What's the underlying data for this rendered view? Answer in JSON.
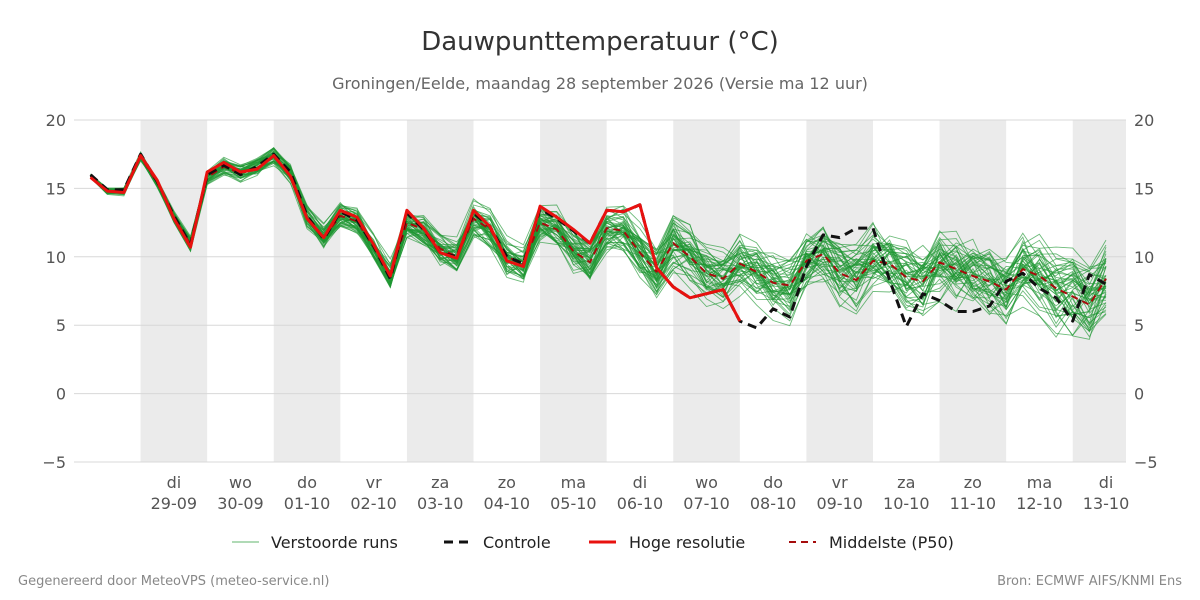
{
  "chart_data": {
    "type": "line",
    "title": "Dauwpunttemperatuur (°C)",
    "subtitle": "Groningen/Eelde, maandag 28 september 2026 (Versie ma 12 uur)",
    "ylim": [
      -5,
      20
    ],
    "yticks": [
      20,
      15,
      10,
      5,
      0,
      -5
    ],
    "ytick_labels": [
      "20",
      "15",
      "10",
      "5",
      "0",
      "−5"
    ],
    "x_range_days": [
      0,
      15.8
    ],
    "grid": true,
    "day_labels": [
      {
        "day": "di",
        "date": "29-09"
      },
      {
        "day": "wo",
        "date": "30-09"
      },
      {
        "day": "do",
        "date": "01-10"
      },
      {
        "day": "vr",
        "date": "02-10"
      },
      {
        "day": "za",
        "date": "03-10"
      },
      {
        "day": "zo",
        "date": "04-10"
      },
      {
        "day": "ma",
        "date": "05-10"
      },
      {
        "day": "di",
        "date": "06-10"
      },
      {
        "day": "wo",
        "date": "07-10"
      },
      {
        "day": "do",
        "date": "08-10"
      },
      {
        "day": "vr",
        "date": "09-10"
      },
      {
        "day": "za",
        "date": "10-10"
      },
      {
        "day": "zo",
        "date": "11-10"
      },
      {
        "day": "ma",
        "date": "12-10"
      },
      {
        "day": "di",
        "date": "13-10"
      }
    ],
    "series": [
      {
        "name": "Hoge resolutie",
        "color": "#e8110f",
        "style": "solid",
        "x": [
          0.25,
          0.5,
          0.75,
          1.0,
          1.25,
          1.5,
          1.75,
          2.0,
          2.25,
          2.5,
          2.75,
          3.0,
          3.25,
          3.5,
          3.75,
          4.0,
          4.25,
          4.5,
          4.75,
          5.0,
          5.25,
          5.5,
          5.75,
          6.0,
          6.25,
          6.5,
          6.75,
          7.0,
          7.25,
          7.5,
          7.75,
          8.0,
          8.25,
          8.5,
          8.75,
          9.0,
          9.25,
          9.5,
          9.75,
          10.0
        ],
        "values": [
          15.8,
          14.8,
          14.7,
          17.4,
          15.6,
          12.8,
          10.7,
          16.2,
          16.9,
          16.2,
          16.4,
          17.4,
          15.9,
          12.8,
          11.4,
          13.4,
          12.9,
          10.9,
          8.6,
          13.4,
          12.1,
          10.3,
          9.9,
          13.4,
          12.2,
          9.7,
          9.3,
          13.7,
          12.9,
          12.0,
          11.0,
          13.4,
          13.3,
          13.8,
          9.2,
          7.8,
          7.0,
          7.3,
          7.6,
          5.3
        ]
      },
      {
        "name": "Controle",
        "color": "#111111",
        "style": "dash",
        "x": [
          0.25,
          0.5,
          0.75,
          1.0,
          1.25,
          1.5,
          1.75,
          2.0,
          2.25,
          2.5,
          2.75,
          3.0,
          3.25,
          3.5,
          3.75,
          4.0,
          4.25,
          4.5,
          4.75,
          5.0,
          5.25,
          5.5,
          5.75,
          6.0,
          6.25,
          6.5,
          6.75,
          7.0,
          7.25,
          7.5,
          7.75,
          8.0,
          8.25,
          8.5,
          8.75,
          9.0,
          9.25,
          9.5,
          9.75,
          10.0,
          10.25,
          10.5,
          10.75,
          11.0,
          11.25,
          11.5,
          11.75,
          12.0,
          12.25,
          12.5,
          12.75,
          13.0,
          13.25,
          13.5,
          13.75,
          14.0,
          14.25,
          14.5,
          14.75,
          15.0,
          15.25,
          15.5
        ],
        "values": [
          16.0,
          14.9,
          14.9,
          17.5,
          15.5,
          13.0,
          10.9,
          16.0,
          16.7,
          16.0,
          16.6,
          17.5,
          16.2,
          13.0,
          11.3,
          13.3,
          12.7,
          10.8,
          8.4,
          13.2,
          12.0,
          10.3,
          10.0,
          13.2,
          12.2,
          10.0,
          9.5,
          13.5,
          12.8,
          11.9,
          11.0,
          13.4,
          13.3,
          13.8,
          9.2,
          7.8,
          7.0,
          7.3,
          7.6,
          5.3,
          4.8,
          6.2,
          5.6,
          9.3,
          11.6,
          11.4,
          12.1,
          12.1,
          8.3,
          4.9,
          7.3,
          6.8,
          6.0,
          6.0,
          6.4,
          8.2,
          8.8,
          7.7,
          7.0,
          5.3,
          8.7,
          8.0
        ]
      },
      {
        "name": "Middelste (P50)",
        "color": "#a60c0c",
        "style": "dash",
        "x": [
          0.25,
          0.5,
          0.75,
          1.0,
          1.25,
          1.5,
          1.75,
          2.0,
          2.25,
          2.5,
          2.75,
          3.0,
          3.25,
          3.5,
          3.75,
          4.0,
          4.25,
          4.5,
          4.75,
          5.0,
          5.25,
          5.5,
          5.75,
          6.0,
          6.25,
          6.5,
          6.75,
          7.0,
          7.25,
          7.5,
          7.75,
          8.0,
          8.25,
          8.5,
          8.75,
          9.0,
          9.25,
          9.5,
          9.75,
          10.0,
          10.25,
          10.5,
          10.75,
          11.0,
          11.25,
          11.5,
          11.75,
          12.0,
          12.25,
          12.5,
          12.75,
          13.0,
          13.25,
          13.5,
          13.75,
          14.0,
          14.25,
          14.5,
          14.75,
          15.0,
          15.25,
          15.5
        ],
        "values": [
          15.9,
          14.8,
          14.8,
          17.3,
          15.4,
          12.9,
          10.9,
          15.8,
          16.6,
          16.1,
          16.5,
          17.3,
          16.0,
          12.9,
          11.4,
          13.0,
          12.6,
          10.7,
          8.6,
          12.5,
          12.0,
          10.6,
          10.0,
          12.8,
          12.0,
          10.0,
          9.5,
          12.5,
          12.0,
          10.4,
          9.6,
          12.1,
          11.9,
          10.3,
          8.9,
          11.0,
          10.0,
          8.8,
          8.4,
          9.5,
          8.9,
          8.1,
          7.9,
          9.7,
          10.2,
          8.8,
          8.3,
          9.7,
          9.5,
          8.5,
          8.2,
          9.6,
          9.1,
          8.6,
          8.2,
          7.6,
          9.1,
          8.6,
          7.7,
          7.1,
          6.5,
          8.4
        ]
      }
    ],
    "ensemble": {
      "name": "Verstoorde runs",
      "color": "#1e9632",
      "member_count": 50
    },
    "legend_position": "bottom-center"
  },
  "footer": {
    "left": "Gegenereerd door MeteoVPS (meteo-service.nl)",
    "right": "Bron: ECMWF AIFS/KNMI Ens"
  }
}
